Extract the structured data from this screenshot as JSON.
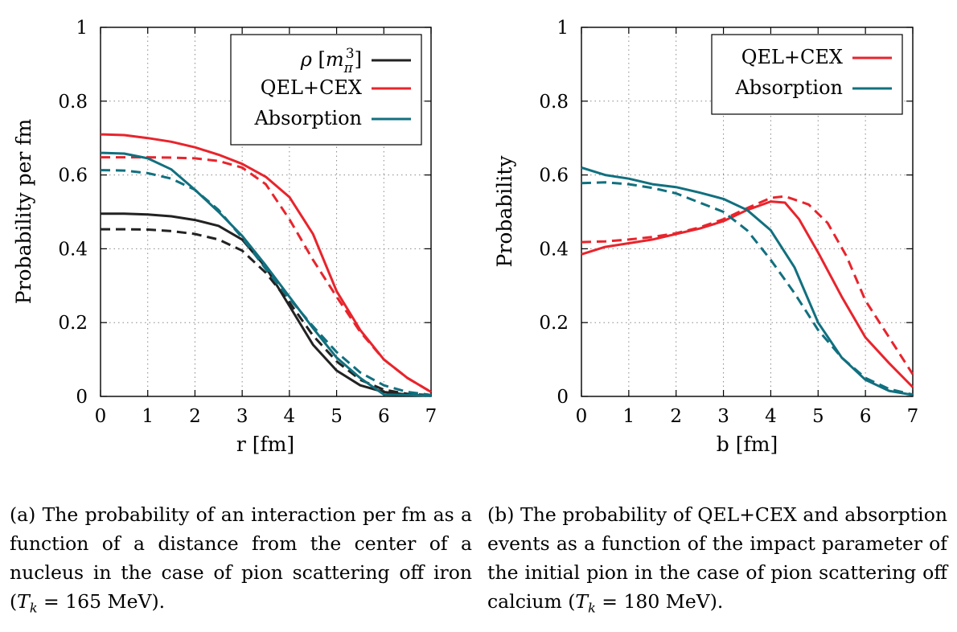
{
  "colors": {
    "density": "#222222",
    "qel_cex": "#e8242c",
    "absorption": "#11707f"
  },
  "chart_data": [
    {
      "type": "line",
      "xlabel": "r [fm]",
      "ylabel": "Probability per fm",
      "xlim": [
        0,
        7
      ],
      "ylim": [
        0,
        1
      ],
      "xticks": [
        "0",
        "1",
        "2",
        "3",
        "4",
        "5",
        "6",
        "7"
      ],
      "yticks": [
        "0",
        "0.2",
        "0.4",
        "0.6",
        "0.8",
        "1"
      ],
      "grid": true,
      "legend_position": "top-right",
      "legend": [
        "ρ [m_π³]",
        "QEL+CEX",
        "Absorption"
      ],
      "note": "solid and dashed lines per series",
      "series": [
        {
          "name": "ρ [m_π³]",
          "style": "solid",
          "color_key": "density",
          "x": [
            0,
            0.5,
            1,
            1.5,
            2,
            2.5,
            3,
            3.5,
            4,
            4.5,
            5,
            5.5,
            6,
            6.5,
            7
          ],
          "y": [
            0.495,
            0.495,
            0.493,
            0.488,
            0.478,
            0.462,
            0.425,
            0.35,
            0.245,
            0.14,
            0.07,
            0.03,
            0.012,
            0.005,
            0.002
          ]
        },
        {
          "name": "ρ [m_π³]",
          "style": "dashed",
          "color_key": "density",
          "x": [
            0,
            0.5,
            1,
            1.5,
            2,
            2.5,
            3,
            3.5,
            4,
            4.5,
            5,
            5.5,
            6,
            6.5,
            7
          ],
          "y": [
            0.453,
            0.453,
            0.452,
            0.448,
            0.44,
            0.425,
            0.395,
            0.335,
            0.255,
            0.165,
            0.095,
            0.045,
            0.018,
            0.007,
            0.003
          ]
        },
        {
          "name": "QEL+CEX",
          "style": "solid",
          "color_key": "qel_cex",
          "x": [
            0,
            0.5,
            1,
            1.5,
            2,
            2.5,
            3,
            3.5,
            4,
            4.5,
            5,
            5.5,
            6,
            6.5,
            7
          ],
          "y": [
            0.71,
            0.708,
            0.7,
            0.69,
            0.675,
            0.655,
            0.63,
            0.595,
            0.54,
            0.44,
            0.285,
            0.18,
            0.1,
            0.05,
            0.012
          ]
        },
        {
          "name": "QEL+CEX",
          "style": "dashed",
          "color_key": "qel_cex",
          "x": [
            0,
            0.5,
            1,
            1.5,
            2,
            2.5,
            3,
            3.5,
            4,
            4.5,
            5,
            5.5,
            6,
            6.5,
            7
          ],
          "y": [
            0.648,
            0.648,
            0.648,
            0.647,
            0.645,
            0.638,
            0.62,
            0.575,
            0.48,
            0.37,
            0.27,
            0.175,
            0.1,
            0.05,
            0.012
          ]
        },
        {
          "name": "Absorption",
          "style": "solid",
          "color_key": "absorption",
          "x": [
            0,
            0.5,
            1,
            1.5,
            2,
            2.5,
            3,
            3.5,
            4,
            4.5,
            5,
            5.5,
            6,
            6.5,
            7
          ],
          "y": [
            0.66,
            0.658,
            0.645,
            0.615,
            0.56,
            0.5,
            0.435,
            0.355,
            0.27,
            0.185,
            0.105,
            0.05,
            0.005,
            0.004,
            0.002
          ]
        },
        {
          "name": "Absorption",
          "style": "dashed",
          "color_key": "absorption",
          "x": [
            0,
            0.5,
            1,
            1.5,
            2,
            2.5,
            3,
            3.5,
            4,
            4.5,
            5,
            5.5,
            6,
            6.5,
            7
          ],
          "y": [
            0.613,
            0.612,
            0.605,
            0.59,
            0.56,
            0.505,
            0.43,
            0.345,
            0.265,
            0.19,
            0.12,
            0.065,
            0.03,
            0.012,
            0.004
          ]
        }
      ]
    },
    {
      "type": "line",
      "xlabel": "b [fm]",
      "ylabel": "Probability",
      "xlim": [
        0,
        7
      ],
      "ylim": [
        0,
        1
      ],
      "xticks": [
        "0",
        "1",
        "2",
        "3",
        "4",
        "5",
        "6",
        "7"
      ],
      "yticks": [
        "0",
        "0.2",
        "0.4",
        "0.6",
        "0.8",
        "1"
      ],
      "grid": true,
      "legend_position": "top-right",
      "legend": [
        "QEL+CEX",
        "Absorption"
      ],
      "note": "solid and dashed lines per series",
      "series": [
        {
          "name": "QEL+CEX",
          "style": "solid",
          "color_key": "qel_cex",
          "x": [
            0,
            0.5,
            1,
            1.5,
            2,
            2.5,
            3,
            3.5,
            4,
            4.3,
            4.6,
            5,
            5.5,
            6,
            6.5,
            7
          ],
          "y": [
            0.385,
            0.405,
            0.415,
            0.425,
            0.44,
            0.455,
            0.475,
            0.505,
            0.528,
            0.525,
            0.48,
            0.39,
            0.27,
            0.16,
            0.09,
            0.025
          ]
        },
        {
          "name": "QEL+CEX",
          "style": "dashed",
          "color_key": "qel_cex",
          "x": [
            0,
            0.5,
            1,
            1.5,
            2,
            2.5,
            3,
            3.5,
            4,
            4.3,
            4.8,
            5.2,
            5.6,
            6,
            6.5,
            7
          ],
          "y": [
            0.418,
            0.42,
            0.425,
            0.432,
            0.442,
            0.458,
            0.48,
            0.51,
            0.538,
            0.542,
            0.52,
            0.47,
            0.38,
            0.26,
            0.16,
            0.06
          ]
        },
        {
          "name": "Absorption",
          "style": "solid",
          "color_key": "absorption",
          "x": [
            0,
            0.5,
            1,
            1.5,
            2,
            2.5,
            3,
            3.5,
            4,
            4.5,
            5,
            5.5,
            6,
            6.5,
            7
          ],
          "y": [
            0.62,
            0.6,
            0.59,
            0.575,
            0.567,
            0.552,
            0.535,
            0.505,
            0.45,
            0.35,
            0.2,
            0.105,
            0.045,
            0.015,
            0.004
          ]
        },
        {
          "name": "Absorption",
          "style": "dashed",
          "color_key": "absorption",
          "x": [
            0,
            0.5,
            1,
            1.5,
            2,
            2.5,
            3,
            3.5,
            4,
            4.5,
            5,
            5.5,
            6,
            6.5,
            7
          ],
          "y": [
            0.578,
            0.58,
            0.575,
            0.565,
            0.55,
            0.525,
            0.5,
            0.45,
            0.37,
            0.28,
            0.18,
            0.105,
            0.05,
            0.02,
            0.005
          ]
        }
      ]
    }
  ],
  "captions": {
    "a": {
      "label": "(a)",
      "text1": "The probability of an interaction per fm as a function of a distance from the center of a nucleus in the case of pion scattering off iron (",
      "text2": " = 165 MeV)."
    },
    "b": {
      "label": "(b)",
      "text1": "The probability of QEL+CEX and absorption events as a function of the impact parameter of the initial pion in the case of pion scattering off calcium (",
      "text2": " = 180 MeV)."
    },
    "tk_symbol": "T",
    "tk_sub": "k"
  }
}
